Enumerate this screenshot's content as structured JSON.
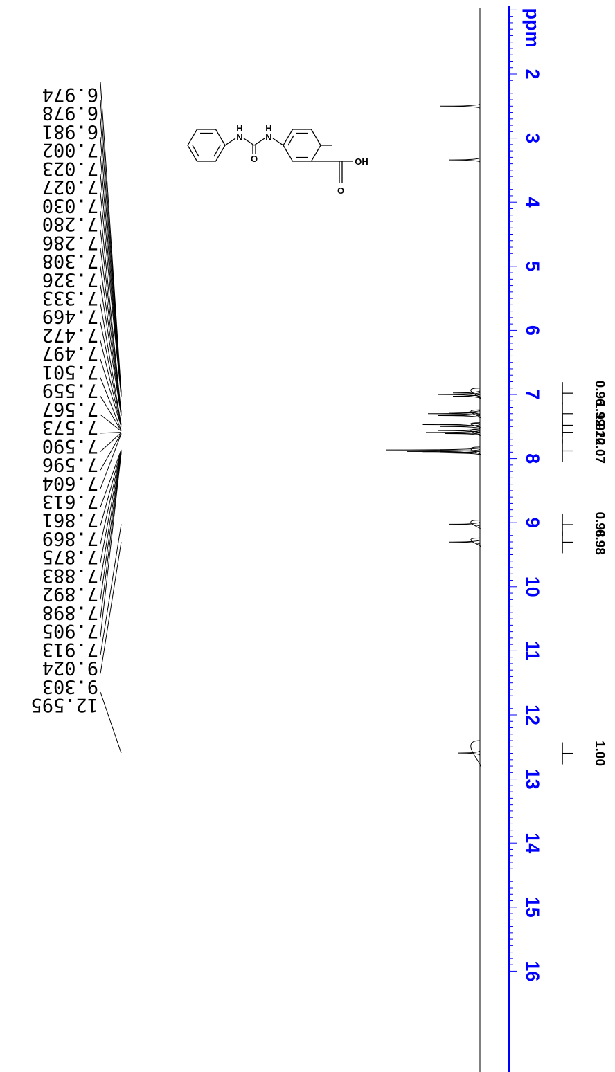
{
  "chart_data": {
    "type": "line",
    "title": "",
    "axis": {
      "unit_label": "ppm",
      "min": 1.0,
      "max": 16.0,
      "ticks": [
        "2",
        "3",
        "4",
        "5",
        "6",
        "7",
        "8",
        "9",
        "10",
        "11",
        "12",
        "13",
        "14",
        "15",
        "16"
      ],
      "color": "#0000ff"
    },
    "peak_labels": [
      "6.974",
      "6.978",
      "6.981",
      "7.002",
      "7.023",
      "7.027",
      "7.030",
      "7.280",
      "7.286",
      "7.308",
      "7.326",
      "7.333",
      "7.469",
      "7.472",
      "7.497",
      "7.501",
      "7.559",
      "7.567",
      "7.573",
      "7.590",
      "7.596",
      "7.604",
      "7.613",
      "7.861",
      "7.869",
      "7.875",
      "7.883",
      "7.892",
      "7.898",
      "7.905",
      "7.913",
      "9.024",
      "9.303",
      "12.595"
    ],
    "peaks": [
      {
        "ppm": 2.5,
        "height": 0.38
      },
      {
        "ppm": 3.34,
        "height": 0.3
      },
      {
        "ppm": 6.976,
        "height": 0.26
      },
      {
        "ppm": 7.002,
        "height": 0.4
      },
      {
        "ppm": 7.027,
        "height": 0.26
      },
      {
        "ppm": 7.28,
        "height": 0.3
      },
      {
        "ppm": 7.3,
        "height": 0.5
      },
      {
        "ppm": 7.33,
        "height": 0.4
      },
      {
        "ppm": 7.47,
        "height": 0.55
      },
      {
        "ppm": 7.5,
        "height": 0.38
      },
      {
        "ppm": 7.563,
        "height": 0.4
      },
      {
        "ppm": 7.593,
        "height": 0.52
      },
      {
        "ppm": 7.61,
        "height": 0.34
      },
      {
        "ppm": 7.865,
        "height": 0.9
      },
      {
        "ppm": 7.89,
        "height": 0.7
      },
      {
        "ppm": 7.91,
        "height": 0.55
      },
      {
        "ppm": 9.024,
        "height": 0.3
      },
      {
        "ppm": 9.303,
        "height": 0.3
      },
      {
        "ppm": 12.595,
        "height": 0.21
      }
    ],
    "integrals": [
      {
        "ppm_from": 6.9,
        "ppm_to": 7.06,
        "value": "0.96"
      },
      {
        "ppm_from": 7.24,
        "ppm_to": 7.36,
        "value": "1.99"
      },
      {
        "ppm_from": 7.44,
        "ppm_to": 7.52,
        "value": "1.92"
      },
      {
        "ppm_from": 7.54,
        "ppm_to": 7.64,
        "value": "2.10"
      },
      {
        "ppm_from": 7.82,
        "ppm_to": 7.94,
        "value": "2.07"
      },
      {
        "ppm_from": 8.96,
        "ppm_to": 9.1,
        "value": "0.98"
      },
      {
        "ppm_from": 9.24,
        "ppm_to": 9.37,
        "value": "0.98"
      },
      {
        "ppm_from": 12.4,
        "ppm_to": 12.8,
        "value": "1.00"
      }
    ]
  },
  "molecule": {
    "atom_labels": {
      "nh1_h": "H",
      "nh1_n": "N",
      "nh2_h": "H",
      "nh2_n": "N",
      "carbonyl_o": "O",
      "acid_oh": "OH",
      "acid_o": "O"
    }
  }
}
